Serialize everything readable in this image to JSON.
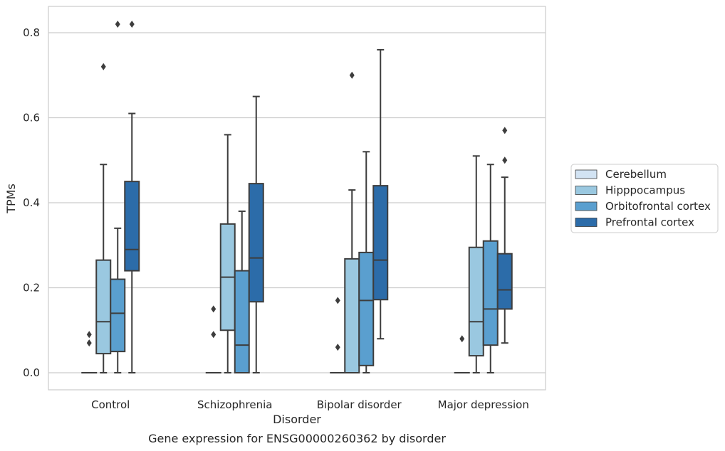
{
  "chart_data": {
    "type": "box",
    "xlabel": "Disorder",
    "ylabel": "TPMs",
    "caption": "Gene expression for ENSG00000260362 by disorder",
    "ylim": [
      -0.04,
      0.86
    ],
    "yticks": [
      0.0,
      0.2,
      0.4,
      0.6,
      0.8
    ],
    "ytick_labels": [
      "0.0",
      "0.2",
      "0.4",
      "0.6",
      "0.8"
    ],
    "grid": "horizontal",
    "legend_position": "right",
    "categories": [
      "Control",
      "Schizophrenia",
      "Bipolar disorder",
      "Major depression"
    ],
    "series": [
      {
        "name": "Cerebellum",
        "color": "#d2e3f3",
        "boxes": [
          {
            "category": "Control",
            "whisker_low": 0,
            "q1": 0,
            "median": 0,
            "q3": 0,
            "whisker_high": 0,
            "outliers": [
              0.07,
              0.09
            ]
          },
          {
            "category": "Schizophrenia",
            "whisker_low": 0,
            "q1": 0,
            "median": 0,
            "q3": 0,
            "whisker_high": 0,
            "outliers": [
              0.09,
              0.15
            ]
          },
          {
            "category": "Bipolar disorder",
            "whisker_low": 0,
            "q1": 0,
            "median": 0,
            "q3": 0,
            "whisker_high": 0,
            "outliers": [
              0.06,
              0.17
            ]
          },
          {
            "category": "Major depression",
            "whisker_low": 0,
            "q1": 0,
            "median": 0,
            "q3": 0,
            "whisker_high": 0,
            "outliers": [
              0.08
            ]
          }
        ]
      },
      {
        "name": "Hipppocampus",
        "color": "#9ac8e0",
        "boxes": [
          {
            "category": "Control",
            "whisker_low": 0,
            "q1": 0.045,
            "median": 0.12,
            "q3": 0.265,
            "whisker_high": 0.49,
            "outliers": [
              0.72
            ]
          },
          {
            "category": "Schizophrenia",
            "whisker_low": 0,
            "q1": 0.1,
            "median": 0.225,
            "q3": 0.35,
            "whisker_high": 0.56,
            "outliers": []
          },
          {
            "category": "Bipolar disorder",
            "whisker_low": 0,
            "q1": 0,
            "median": 0,
            "q3": 0.268,
            "whisker_high": 0.43,
            "outliers": [
              0.7
            ]
          },
          {
            "category": "Major depression",
            "whisker_low": 0,
            "q1": 0.04,
            "median": 0.12,
            "q3": 0.295,
            "whisker_high": 0.51,
            "outliers": []
          }
        ]
      },
      {
        "name": "Orbitofrontal cortex",
        "color": "#5a9fcf",
        "boxes": [
          {
            "category": "Control",
            "whisker_low": 0,
            "q1": 0.05,
            "median": 0.14,
            "q3": 0.22,
            "whisker_high": 0.34,
            "outliers": [
              0.82
            ]
          },
          {
            "category": "Schizophrenia",
            "whisker_low": 0,
            "q1": 0,
            "median": 0.065,
            "q3": 0.24,
            "whisker_high": 0.38,
            "outliers": []
          },
          {
            "category": "Bipolar disorder",
            "whisker_low": 0,
            "q1": 0.017,
            "median": 0.17,
            "q3": 0.283,
            "whisker_high": 0.52,
            "outliers": []
          },
          {
            "category": "Major depression",
            "whisker_low": 0,
            "q1": 0.065,
            "median": 0.15,
            "q3": 0.31,
            "whisker_high": 0.49,
            "outliers": []
          }
        ]
      },
      {
        "name": "Prefrontal cortex",
        "color": "#2c6ca9",
        "boxes": [
          {
            "category": "Control",
            "whisker_low": 0,
            "q1": 0.24,
            "median": 0.29,
            "q3": 0.45,
            "whisker_high": 0.61,
            "outliers": [
              0.82
            ]
          },
          {
            "category": "Schizophrenia",
            "whisker_low": 0,
            "q1": 0.167,
            "median": 0.27,
            "q3": 0.445,
            "whisker_high": 0.65,
            "outliers": []
          },
          {
            "category": "Bipolar disorder",
            "whisker_low": 0.08,
            "q1": 0.172,
            "median": 0.265,
            "q3": 0.44,
            "whisker_high": 0.76,
            "outliers": []
          },
          {
            "category": "Major depression",
            "whisker_low": 0.07,
            "q1": 0.15,
            "median": 0.195,
            "q3": 0.28,
            "whisker_high": 0.46,
            "outliers": [
              0.5,
              0.57
            ]
          }
        ]
      }
    ]
  }
}
